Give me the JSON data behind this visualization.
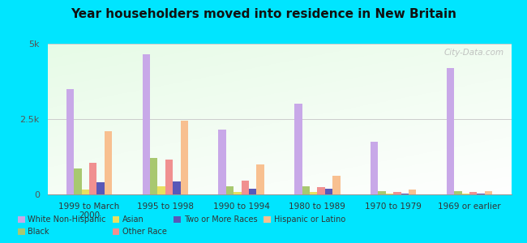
{
  "title": "Year householders moved into residence in New Britain",
  "categories": [
    "1999 to March\n2000",
    "1995 to 1998",
    "1990 to 1994",
    "1980 to 1989",
    "1970 to 1979",
    "1969 or earlier"
  ],
  "series_order": [
    "White Non-Hispanic",
    "Black",
    "Asian",
    "Other Race",
    "Two or More Races",
    "Hispanic or Latino"
  ],
  "series": {
    "White Non-Hispanic": {
      "values": [
        3500,
        4650,
        2150,
        3000,
        1750,
        4200
      ],
      "color": "#c8a8e8"
    },
    "Black": {
      "values": [
        850,
        1200,
        280,
        280,
        120,
        120
      ],
      "color": "#a8c870"
    },
    "Asian": {
      "values": [
        150,
        280,
        80,
        80,
        30,
        30
      ],
      "color": "#e8e060"
    },
    "Other Race": {
      "values": [
        1050,
        1150,
        450,
        250,
        80,
        80
      ],
      "color": "#f09090"
    },
    "Two or More Races": {
      "values": [
        400,
        420,
        180,
        180,
        30,
        30
      ],
      "color": "#5858b8"
    },
    "Hispanic or Latino": {
      "values": [
        2100,
        2450,
        1000,
        620,
        170,
        120
      ],
      "color": "#f8c090"
    }
  },
  "ylim": [
    0,
    5000
  ],
  "yticks": [
    0,
    2500,
    5000
  ],
  "ytick_labels": [
    "0",
    "2.5k",
    "5k"
  ],
  "outer_background": "#00e5ff",
  "watermark": "City-Data.com",
  "legend_order": [
    "White Non-Hispanic",
    "Black",
    "Asian",
    "Other Race",
    "Two or More Races",
    "Hispanic or Latino"
  ]
}
